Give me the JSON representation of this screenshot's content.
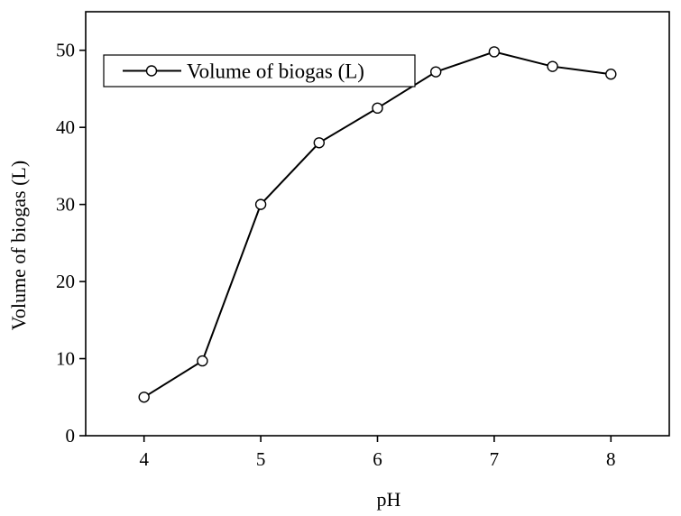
{
  "chart_data": {
    "type": "line",
    "title": "",
    "xlabel": "pH",
    "ylabel": "Volume of biogas (L)",
    "xlim": [
      3.5,
      8.5
    ],
    "ylim": [
      0,
      55
    ],
    "x_ticks": [
      4,
      5,
      6,
      7,
      8
    ],
    "x_tick_labels": [
      "4",
      "5",
      "6",
      "7",
      "8"
    ],
    "y_ticks": [
      0,
      10,
      20,
      30,
      40,
      50
    ],
    "y_tick_labels": [
      "0",
      "10",
      "20",
      "30",
      "40",
      "50"
    ],
    "grid": false,
    "legend_position": "top-left",
    "series": [
      {
        "name": "Volume of biogas (L)",
        "marker": "open-circle",
        "color": "#000000",
        "x": [
          4,
          4.5,
          5,
          5.5,
          6,
          6.5,
          7,
          7.5,
          8
        ],
        "y": [
          5,
          9.7,
          30,
          38,
          42.5,
          47.2,
          49.8,
          47.9,
          46.9
        ]
      }
    ]
  }
}
